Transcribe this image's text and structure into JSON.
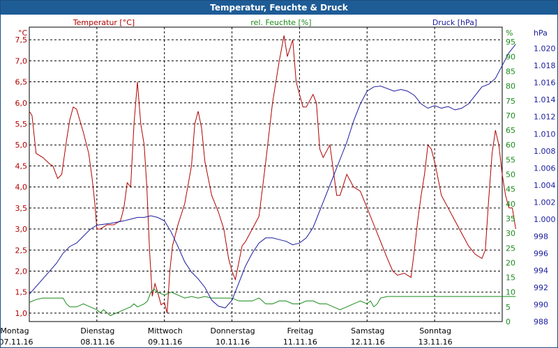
{
  "window": {
    "title": "Temperatur, Feuchte & Druck"
  },
  "chart_data": {
    "type": "line",
    "title": "Temperatur, Feuchte & Druck",
    "x_categories": [
      {
        "day": "Montag",
        "date": "07.11.16"
      },
      {
        "day": "Dienstag",
        "date": "08.11.16"
      },
      {
        "day": "Mittwoch",
        "date": "09.11.16"
      },
      {
        "day": "Donnerstag",
        "date": "10.11.16"
      },
      {
        "day": "Freitag",
        "date": "11.11.16"
      },
      {
        "day": "Samstag",
        "date": "12.11.16"
      },
      {
        "day": "Sonntag",
        "date": "13.11.16"
      }
    ],
    "x_range_days": [
      0,
      7
    ],
    "axes": {
      "temperature": {
        "label": "Temperatur [°C]",
        "unit": "°C",
        "min": 0.8,
        "max": 7.8,
        "ticks": [
          "1,0",
          "1,5",
          "2,0",
          "2,5",
          "3,0",
          "3,5",
          "4,0",
          "4,5",
          "5,0",
          "5,5",
          "6,0",
          "6,5",
          "7,0",
          "7,5"
        ],
        "color": "#b00000"
      },
      "humidity": {
        "label": "rel. Feuchte [%]",
        "unit": "%",
        "min": 0,
        "max": 100,
        "ticks": [
          "0",
          "5",
          "10",
          "15",
          "20",
          "25",
          "30",
          "35",
          "40",
          "45",
          "50",
          "55",
          "60",
          "65",
          "70",
          "75",
          "80",
          "85",
          "90",
          "95"
        ],
        "color": "#1a8a1a"
      },
      "pressure": {
        "label": "Druck [hPa]",
        "unit": "hPa",
        "min": 988,
        "max": 1022.5,
        "ticks": [
          "988",
          "990",
          "992",
          "994",
          "996",
          "998",
          "1.000",
          "1.002",
          "1.004",
          "1.006",
          "1.008",
          "1.010",
          "1.012",
          "1.014",
          "1.016",
          "1.018",
          "1.020"
        ],
        "color": "#1a1a9e"
      }
    },
    "series": [
      {
        "name": "Temperatur",
        "axis": "temperature",
        "color": "#b00000",
        "points": [
          [
            0,
            5.8
          ],
          [
            0.04,
            5.7
          ],
          [
            0.1,
            4.8
          ],
          [
            0.2,
            4.7
          ],
          [
            0.3,
            4.55
          ],
          [
            0.35,
            4.5
          ],
          [
            0.42,
            4.2
          ],
          [
            0.48,
            4.3
          ],
          [
            0.55,
            5.1
          ],
          [
            0.6,
            5.6
          ],
          [
            0.65,
            5.9
          ],
          [
            0.7,
            5.85
          ],
          [
            0.8,
            5.3
          ],
          [
            0.88,
            4.8
          ],
          [
            0.93,
            4.2
          ],
          [
            0.97,
            3.6
          ],
          [
            1.0,
            3.0
          ],
          [
            1.05,
            3.0
          ],
          [
            1.15,
            3.1
          ],
          [
            1.25,
            3.1
          ],
          [
            1.35,
            3.2
          ],
          [
            1.4,
            3.5
          ],
          [
            1.45,
            4.1
          ],
          [
            1.5,
            4.0
          ],
          [
            1.55,
            5.5
          ],
          [
            1.6,
            6.5
          ],
          [
            1.65,
            5.5
          ],
          [
            1.7,
            5.0
          ],
          [
            1.74,
            4.0
          ],
          [
            1.78,
            2.5
          ],
          [
            1.82,
            1.4
          ],
          [
            1.86,
            1.7
          ],
          [
            1.9,
            1.5
          ],
          [
            1.95,
            1.2
          ],
          [
            2.0,
            1.25
          ],
          [
            2.04,
            1.0
          ],
          [
            2.08,
            2.0
          ],
          [
            2.12,
            2.6
          ],
          [
            2.2,
            3.1
          ],
          [
            2.3,
            3.6
          ],
          [
            2.4,
            4.5
          ],
          [
            2.45,
            5.5
          ],
          [
            2.5,
            5.8
          ],
          [
            2.55,
            5.4
          ],
          [
            2.6,
            4.6
          ],
          [
            2.7,
            3.8
          ],
          [
            2.8,
            3.4
          ],
          [
            2.88,
            3.0
          ],
          [
            2.95,
            2.3
          ],
          [
            3.0,
            2.0
          ],
          [
            3.05,
            1.8
          ],
          [
            3.1,
            2.2
          ],
          [
            3.15,
            2.6
          ],
          [
            3.2,
            2.7
          ],
          [
            3.3,
            3.0
          ],
          [
            3.4,
            3.3
          ],
          [
            3.5,
            4.6
          ],
          [
            3.6,
            6.0
          ],
          [
            3.7,
            7.0
          ],
          [
            3.77,
            7.6
          ],
          [
            3.82,
            7.1
          ],
          [
            3.9,
            7.5
          ],
          [
            3.95,
            6.5
          ],
          [
            4.05,
            5.9
          ],
          [
            4.1,
            5.9
          ],
          [
            4.2,
            6.2
          ],
          [
            4.25,
            6.0
          ],
          [
            4.3,
            4.9
          ],
          [
            4.35,
            4.7
          ],
          [
            4.45,
            5.0
          ],
          [
            4.55,
            3.8
          ],
          [
            4.6,
            3.8
          ],
          [
            4.7,
            4.3
          ],
          [
            4.8,
            4.0
          ],
          [
            4.9,
            3.9
          ],
          [
            5.0,
            3.5
          ],
          [
            5.1,
            3.1
          ],
          [
            5.2,
            2.7
          ],
          [
            5.3,
            2.3
          ],
          [
            5.38,
            2.0
          ],
          [
            5.45,
            1.9
          ],
          [
            5.55,
            1.95
          ],
          [
            5.65,
            1.85
          ],
          [
            5.7,
            2.5
          ],
          [
            5.75,
            3.2
          ],
          [
            5.8,
            3.8
          ],
          [
            5.85,
            4.3
          ],
          [
            5.9,
            5.0
          ],
          [
            5.95,
            4.9
          ],
          [
            6.0,
            4.6
          ],
          [
            6.05,
            4.2
          ],
          [
            6.1,
            3.8
          ],
          [
            6.2,
            3.5
          ],
          [
            6.3,
            3.2
          ],
          [
            6.4,
            2.9
          ],
          [
            6.5,
            2.6
          ],
          [
            6.6,
            2.4
          ],
          [
            6.7,
            2.3
          ],
          [
            6.75,
            2.5
          ],
          [
            6.8,
            3.7
          ],
          [
            6.85,
            4.8
          ],
          [
            6.9,
            5.35
          ],
          [
            6.95,
            5.0
          ],
          [
            7.0,
            4.3
          ],
          [
            7.05,
            3.8
          ],
          [
            7.1,
            3.5
          ],
          [
            7.15,
            3.5
          ],
          [
            7.2,
            3.0
          ]
        ]
      },
      {
        "name": "rel. Feuchte",
        "axis": "humidity",
        "color": "#1a8a1a",
        "points": [
          [
            0,
            6.5
          ],
          [
            0.1,
            7.5
          ],
          [
            0.2,
            8
          ],
          [
            0.4,
            8
          ],
          [
            0.5,
            8
          ],
          [
            0.55,
            6
          ],
          [
            0.6,
            5
          ],
          [
            0.7,
            5
          ],
          [
            0.8,
            6
          ],
          [
            0.9,
            5
          ],
          [
            1.0,
            4
          ],
          [
            1.05,
            3
          ],
          [
            1.1,
            4
          ],
          [
            1.2,
            2
          ],
          [
            1.3,
            3
          ],
          [
            1.4,
            4
          ],
          [
            1.5,
            5
          ],
          [
            1.55,
            6
          ],
          [
            1.6,
            5
          ],
          [
            1.7,
            6
          ],
          [
            1.75,
            7
          ],
          [
            1.8,
            10
          ],
          [
            1.85,
            11
          ],
          [
            1.9,
            10
          ],
          [
            2.0,
            9
          ],
          [
            2.1,
            10
          ],
          [
            2.2,
            9
          ],
          [
            2.3,
            8
          ],
          [
            2.4,
            8.5
          ],
          [
            2.5,
            8
          ],
          [
            2.6,
            8.5
          ],
          [
            2.7,
            8
          ],
          [
            2.8,
            8
          ],
          [
            2.9,
            8
          ],
          [
            3.0,
            8
          ],
          [
            3.1,
            7
          ],
          [
            3.2,
            7
          ],
          [
            3.3,
            7
          ],
          [
            3.4,
            8
          ],
          [
            3.45,
            7
          ],
          [
            3.5,
            6
          ],
          [
            3.6,
            6
          ],
          [
            3.7,
            7
          ],
          [
            3.8,
            7
          ],
          [
            3.9,
            6
          ],
          [
            4.0,
            6
          ],
          [
            4.1,
            7
          ],
          [
            4.2,
            7
          ],
          [
            4.3,
            6
          ],
          [
            4.4,
            6
          ],
          [
            4.5,
            5
          ],
          [
            4.6,
            4
          ],
          [
            4.7,
            5
          ],
          [
            4.8,
            6
          ],
          [
            4.9,
            7
          ],
          [
            5.0,
            6
          ],
          [
            5.05,
            7
          ],
          [
            5.1,
            5
          ],
          [
            5.15,
            6
          ],
          [
            5.2,
            8
          ],
          [
            5.3,
            8.5
          ],
          [
            5.5,
            8.5
          ],
          [
            6.0,
            8.5
          ],
          [
            6.5,
            8.5
          ],
          [
            7.0,
            8.5
          ],
          [
            7.2,
            8.5
          ]
        ]
      },
      {
        "name": "Druck",
        "axis": "pressure",
        "color": "#1a1a9e",
        "points": [
          [
            0,
            991.2
          ],
          [
            0.2,
            993.0
          ],
          [
            0.4,
            994.8
          ],
          [
            0.5,
            996.0
          ],
          [
            0.6,
            996.8
          ],
          [
            0.7,
            997.2
          ],
          [
            0.8,
            998.0
          ],
          [
            0.9,
            998.8
          ],
          [
            1.0,
            999.3
          ],
          [
            1.2,
            999.5
          ],
          [
            1.4,
            999.8
          ],
          [
            1.5,
            1000.0
          ],
          [
            1.6,
            1000.2
          ],
          [
            1.7,
            1000.2
          ],
          [
            1.8,
            1000.4
          ],
          [
            1.9,
            1000.2
          ],
          [
            2.0,
            999.8
          ],
          [
            2.1,
            998.5
          ],
          [
            2.2,
            996.8
          ],
          [
            2.3,
            995.0
          ],
          [
            2.4,
            993.8
          ],
          [
            2.5,
            993.0
          ],
          [
            2.6,
            992.0
          ],
          [
            2.7,
            990.5
          ],
          [
            2.8,
            989.8
          ],
          [
            2.9,
            989.6
          ],
          [
            3.0,
            990.5
          ],
          [
            3.1,
            992.5
          ],
          [
            3.2,
            994.5
          ],
          [
            3.3,
            996.0
          ],
          [
            3.4,
            997.2
          ],
          [
            3.5,
            997.8
          ],
          [
            3.6,
            997.8
          ],
          [
            3.7,
            997.6
          ],
          [
            3.8,
            997.4
          ],
          [
            3.9,
            997.0
          ],
          [
            4.0,
            997.2
          ],
          [
            4.1,
            997.8
          ],
          [
            4.2,
            999.0
          ],
          [
            4.3,
            1001.0
          ],
          [
            4.4,
            1003.0
          ],
          [
            4.5,
            1005.0
          ],
          [
            4.6,
            1007.0
          ],
          [
            4.7,
            1009.0
          ],
          [
            4.8,
            1011.5
          ],
          [
            4.9,
            1013.5
          ],
          [
            5.0,
            1015.0
          ],
          [
            5.1,
            1015.5
          ],
          [
            5.2,
            1015.6
          ],
          [
            5.3,
            1015.3
          ],
          [
            5.4,
            1015.0
          ],
          [
            5.5,
            1015.2
          ],
          [
            5.6,
            1015.0
          ],
          [
            5.7,
            1014.5
          ],
          [
            5.8,
            1013.5
          ],
          [
            5.9,
            1013.0
          ],
          [
            6.0,
            1013.3
          ],
          [
            6.1,
            1013.0
          ],
          [
            6.2,
            1013.2
          ],
          [
            6.3,
            1012.8
          ],
          [
            6.4,
            1013.0
          ],
          [
            6.5,
            1013.5
          ],
          [
            6.6,
            1014.5
          ],
          [
            6.7,
            1015.5
          ],
          [
            6.8,
            1015.8
          ],
          [
            6.9,
            1016.5
          ],
          [
            7.0,
            1018.0
          ],
          [
            7.1,
            1019.5
          ],
          [
            7.2,
            1020.5
          ]
        ]
      }
    ]
  }
}
